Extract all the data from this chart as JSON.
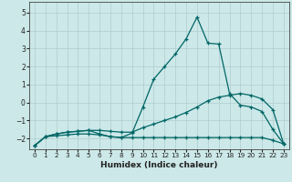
{
  "xlabel": "Humidex (Indice chaleur)",
  "ylabel": "",
  "background_color": "#cce8e8",
  "grid_color": "#b0cccc",
  "line_color": "#006666",
  "xlim": [
    -0.5,
    23.5
  ],
  "ylim": [
    -2.6,
    5.6
  ],
  "yticks": [
    -2,
    -1,
    0,
    1,
    2,
    3,
    4,
    5
  ],
  "xticks": [
    0,
    1,
    2,
    3,
    4,
    5,
    6,
    7,
    8,
    9,
    10,
    11,
    12,
    13,
    14,
    15,
    16,
    17,
    18,
    19,
    20,
    21,
    22,
    23
  ],
  "series": [
    {
      "x": [
        0,
        1,
        2,
        3,
        4,
        5,
        6,
        7,
        8,
        9,
        10,
        11,
        12,
        13,
        14,
        15,
        16,
        17,
        18,
        19,
        20,
        21,
        22,
        23
      ],
      "y": [
        -2.4,
        -1.9,
        -1.85,
        -1.8,
        -1.75,
        -1.75,
        -1.8,
        -1.9,
        -1.95,
        -1.95,
        -1.95,
        -1.95,
        -1.95,
        -1.95,
        -1.95,
        -1.95,
        -1.95,
        -1.95,
        -1.95,
        -1.95,
        -1.95,
        -1.95,
        -2.1,
        -2.3
      ]
    },
    {
      "x": [
        0,
        1,
        2,
        3,
        4,
        5,
        6,
        7,
        8,
        9,
        10,
        11,
        12,
        13,
        14,
        15,
        16,
        17,
        18,
        19,
        20,
        21,
        22,
        23
      ],
      "y": [
        -2.4,
        -1.9,
        -1.75,
        -1.65,
        -1.6,
        -1.55,
        -1.55,
        -1.6,
        -1.65,
        -1.65,
        -1.4,
        -1.2,
        -1.0,
        -0.8,
        -0.55,
        -0.25,
        0.1,
        0.3,
        0.4,
        0.5,
        0.4,
        0.2,
        -0.4,
        -2.3
      ]
    },
    {
      "x": [
        0,
        1,
        2,
        3,
        4,
        5,
        6,
        7,
        8,
        9,
        10,
        11,
        12,
        13,
        14,
        15,
        16,
        17,
        18,
        19,
        20,
        21,
        22,
        23
      ],
      "y": [
        -2.4,
        -1.9,
        -1.75,
        -1.65,
        -1.6,
        -1.55,
        -1.75,
        -1.9,
        -1.95,
        -1.7,
        -0.25,
        1.3,
        2.0,
        2.7,
        3.55,
        4.75,
        3.3,
        3.25,
        0.5,
        -0.15,
        -0.25,
        -0.5,
        -1.5,
        -2.3
      ]
    }
  ]
}
